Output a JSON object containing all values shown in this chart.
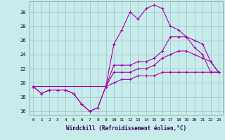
{
  "xlabel": "Windchill (Refroidissement éolien,°C)",
  "bg_color": "#c8ecec",
  "grid_color": "#a0c8c8",
  "line_color": "#aa00aa",
  "xlim": [
    -0.5,
    23.5
  ],
  "ylim": [
    15.5,
    31.5
  ],
  "xticks": [
    0,
    1,
    2,
    3,
    4,
    5,
    6,
    7,
    8,
    9,
    10,
    11,
    12,
    13,
    14,
    15,
    16,
    17,
    18,
    19,
    20,
    21,
    22,
    23
  ],
  "yticks": [
    16,
    18,
    20,
    22,
    24,
    26,
    28,
    30
  ],
  "line1_x": [
    0,
    1,
    2,
    3,
    4,
    5,
    6,
    7,
    8,
    9,
    10,
    11,
    12,
    13,
    14,
    15,
    16,
    17,
    18,
    19,
    20,
    21,
    22,
    23
  ],
  "line1_y": [
    19.5,
    18.5,
    19.0,
    19.0,
    19.0,
    18.5,
    17.0,
    16.0,
    16.5,
    19.5,
    25.5,
    27.5,
    30.0,
    29.0,
    30.5,
    31.0,
    30.5,
    28.0,
    27.5,
    26.5,
    25.0,
    24.0,
    21.5,
    21.5
  ],
  "line2_x": [
    0,
    9,
    10,
    11,
    12,
    13,
    14,
    15,
    16,
    17,
    18,
    19,
    20,
    21,
    22,
    23
  ],
  "line2_y": [
    19.5,
    19.5,
    22.5,
    22.5,
    22.5,
    23.0,
    23.0,
    23.5,
    24.5,
    26.5,
    26.5,
    26.5,
    26.0,
    25.5,
    23.0,
    21.5
  ],
  "line3_x": [
    0,
    9,
    10,
    11,
    12,
    13,
    14,
    15,
    16,
    17,
    18,
    19,
    20,
    21,
    22,
    23
  ],
  "line3_y": [
    19.5,
    19.5,
    21.5,
    21.5,
    21.5,
    22.0,
    22.0,
    22.5,
    23.5,
    24.0,
    24.5,
    24.5,
    24.0,
    23.5,
    23.0,
    21.5
  ],
  "line4_x": [
    0,
    1,
    2,
    3,
    4,
    5,
    6,
    7,
    8,
    9,
    10,
    11,
    12,
    13,
    14,
    15,
    16,
    17,
    18,
    19,
    20,
    21,
    22,
    23
  ],
  "line4_y": [
    19.5,
    18.5,
    19.0,
    19.0,
    19.0,
    18.5,
    17.0,
    16.0,
    16.5,
    19.5,
    20.0,
    20.5,
    20.5,
    21.0,
    21.0,
    21.0,
    21.5,
    21.5,
    21.5,
    21.5,
    21.5,
    21.5,
    21.5,
    21.5
  ]
}
